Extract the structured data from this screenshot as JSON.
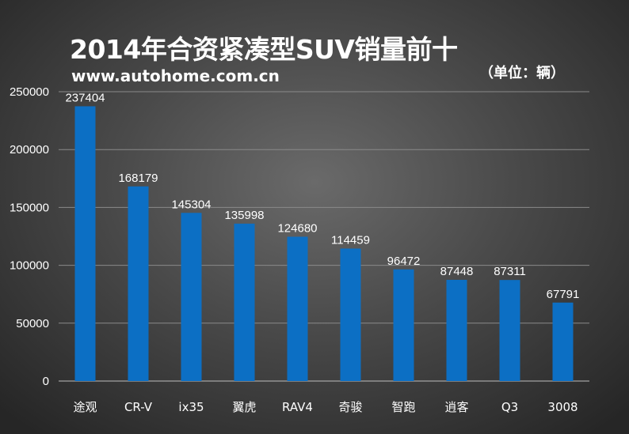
{
  "chart_data": {
    "type": "bar",
    "title": "2014年合资紧凑型SUV销量前十",
    "subtitle": "www.autohome.com.cn",
    "unit_note": "（单位：辆）",
    "categories": [
      "途观",
      "CR-V",
      "ix35",
      "翼虎",
      "RAV4",
      "奇骏",
      "智跑",
      "逍客",
      "Q3",
      "3008"
    ],
    "values": [
      237404,
      168179,
      145304,
      135998,
      124680,
      114459,
      96472,
      87448,
      87311,
      67791
    ],
    "ylim": [
      0,
      250000
    ],
    "yticks": [
      0,
      50000,
      100000,
      150000,
      200000,
      250000
    ],
    "xlabel": "",
    "ylabel": "",
    "grid": true,
    "bar_color": "#0c6fc4"
  }
}
